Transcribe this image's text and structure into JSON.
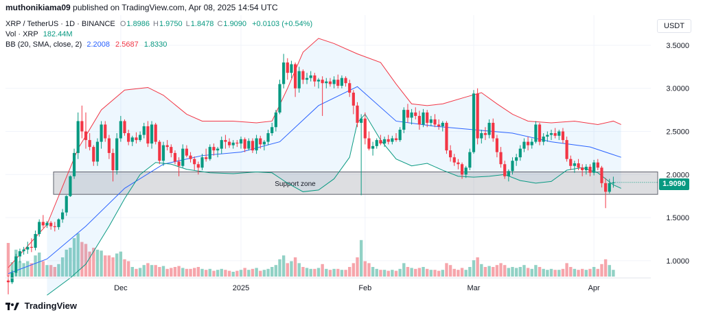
{
  "header": {
    "user": "muthonikiama09",
    "published_text": "published on TradingView.com, Apr 08, 2025 14:54 UTC"
  },
  "legend": {
    "symbol": "XRP / TetherUS · 1D · BINANCE",
    "ohlc": [
      {
        "label": "O",
        "value": "1.8986"
      },
      {
        "label": "H",
        "value": "1.9750"
      },
      {
        "label": "L",
        "value": "1.8478"
      },
      {
        "label": "C",
        "value": "1.9090"
      }
    ],
    "change": "+0.0103 (+0.54%)",
    "volume_label": "Vol · XRP",
    "volume_value": "182.44M",
    "bb_label": "BB (20, SMA, close, 2)",
    "bb_basis": "2.2008",
    "bb_upper": "2.5687",
    "bb_lower": "1.8330"
  },
  "quote_currency": "USDT",
  "last_price": "1.9090",
  "annotation": {
    "text": "Support zone",
    "from": 1.77,
    "to": 2.03
  },
  "footer": {
    "brand": "TradingView"
  },
  "colors": {
    "up": "#089981",
    "down": "#f23645",
    "vol_up": "#91d1c5",
    "vol_down": "#f6a5ab",
    "bb_basis": "#2962ff",
    "bb_upper": "#f23645",
    "bb_lower": "#089981",
    "bb_fill": "#2196f3"
  },
  "chart_data": {
    "type": "candlestick",
    "y_ticks": [
      "3.5000",
      "3.0000",
      "2.5000",
      "2.0000",
      "1.5000",
      "1.0000"
    ],
    "x_ticks": [
      {
        "label": "Dec",
        "index": 29
      },
      {
        "label": "2025",
        "index": 60
      },
      {
        "label": "Feb",
        "index": 92
      },
      {
        "label": "Mar",
        "index": 120
      },
      {
        "label": "Apr",
        "index": 151
      }
    ],
    "ylim": [
      0.8,
      3.85
    ],
    "ohlc": [
      [
        0.77,
        0.83,
        0.61,
        0.75
      ],
      [
        0.75,
        0.89,
        0.73,
        0.86
      ],
      [
        0.86,
        1.08,
        0.82,
        1.05
      ],
      [
        1.05,
        1.14,
        0.98,
        1.11
      ],
      [
        1.11,
        1.16,
        1.07,
        1.13
      ],
      [
        1.13,
        1.22,
        1.08,
        1.16
      ],
      [
        1.16,
        1.26,
        1.1,
        1.15
      ],
      [
        1.15,
        1.35,
        1.12,
        1.31
      ],
      [
        1.31,
        1.48,
        1.28,
        1.45
      ],
      [
        1.45,
        1.53,
        1.38,
        1.41
      ],
      [
        1.41,
        1.46,
        1.38,
        1.44
      ],
      [
        1.44,
        1.46,
        1.36,
        1.4
      ],
      [
        1.4,
        1.45,
        1.34,
        1.39
      ],
      [
        1.39,
        1.49,
        1.36,
        1.48
      ],
      [
        1.48,
        1.6,
        1.44,
        1.56
      ],
      [
        1.56,
        1.76,
        1.52,
        1.75
      ],
      [
        1.75,
        1.99,
        1.74,
        1.98
      ],
      [
        1.98,
        2.3,
        1.95,
        2.25
      ],
      [
        2.25,
        2.72,
        2.18,
        2.62
      ],
      [
        2.62,
        2.8,
        2.42,
        2.5
      ],
      [
        2.5,
        2.72,
        2.3,
        2.4
      ],
      [
        2.4,
        2.48,
        2.28,
        2.32
      ],
      [
        2.32,
        2.34,
        2.1,
        2.15
      ],
      [
        2.15,
        2.42,
        2.1,
        2.38
      ],
      [
        2.38,
        2.62,
        2.3,
        2.58
      ],
      [
        2.58,
        2.62,
        2.38,
        2.42
      ],
      [
        2.42,
        2.46,
        2.18,
        2.25
      ],
      [
        2.25,
        2.3,
        1.92,
        2.05
      ],
      [
        2.05,
        2.48,
        2.0,
        2.42
      ],
      [
        2.42,
        2.68,
        2.38,
        2.62
      ],
      [
        2.62,
        2.64,
        2.45,
        2.48
      ],
      [
        2.48,
        2.52,
        2.34,
        2.38
      ],
      [
        2.38,
        2.45,
        2.33,
        2.43
      ],
      [
        2.43,
        2.49,
        2.36,
        2.4
      ],
      [
        2.4,
        2.5,
        2.38,
        2.46
      ],
      [
        2.46,
        2.6,
        2.42,
        2.56
      ],
      [
        2.56,
        2.62,
        2.32,
        2.36
      ],
      [
        2.36,
        2.62,
        2.3,
        2.58
      ],
      [
        2.58,
        2.6,
        2.35,
        2.38
      ],
      [
        2.38,
        2.4,
        2.12,
        2.16
      ],
      [
        2.16,
        2.38,
        2.1,
        2.34
      ],
      [
        2.34,
        2.4,
        2.28,
        2.32
      ],
      [
        2.32,
        2.35,
        2.2,
        2.25
      ],
      [
        2.25,
        2.28,
        2.12,
        2.15
      ],
      [
        2.15,
        2.2,
        1.98,
        2.1
      ],
      [
        2.1,
        2.35,
        2.08,
        2.3
      ],
      [
        2.3,
        2.34,
        2.2,
        2.22
      ],
      [
        2.22,
        2.26,
        2.14,
        2.18
      ],
      [
        2.18,
        2.21,
        2.05,
        2.12
      ],
      [
        2.12,
        2.15,
        2.0,
        2.08
      ],
      [
        2.08,
        2.24,
        2.05,
        2.2
      ],
      [
        2.2,
        2.3,
        2.15,
        2.18
      ],
      [
        2.18,
        2.35,
        2.16,
        2.32
      ],
      [
        2.32,
        2.36,
        2.22,
        2.28
      ],
      [
        2.28,
        2.32,
        2.2,
        2.3
      ],
      [
        2.3,
        2.44,
        2.24,
        2.4
      ],
      [
        2.4,
        2.46,
        2.3,
        2.38
      ],
      [
        2.38,
        2.42,
        2.31,
        2.34
      ],
      [
        2.34,
        2.4,
        2.3,
        2.37
      ],
      [
        2.37,
        2.4,
        2.32,
        2.36
      ],
      [
        2.36,
        2.44,
        2.3,
        2.41
      ],
      [
        2.41,
        2.43,
        2.26,
        2.3
      ],
      [
        2.3,
        2.42,
        2.28,
        2.39
      ],
      [
        2.39,
        2.42,
        2.25,
        2.28
      ],
      [
        2.28,
        2.46,
        2.24,
        2.42
      ],
      [
        2.42,
        2.45,
        2.3,
        2.35
      ],
      [
        2.35,
        2.4,
        2.28,
        2.38
      ],
      [
        2.38,
        2.52,
        2.34,
        2.48
      ],
      [
        2.48,
        2.6,
        2.45,
        2.55
      ],
      [
        2.55,
        2.75,
        2.5,
        2.72
      ],
      [
        2.72,
        3.1,
        2.7,
        3.05
      ],
      [
        3.05,
        3.4,
        3.0,
        3.3
      ],
      [
        3.3,
        3.35,
        3.1,
        3.18
      ],
      [
        3.18,
        3.32,
        3.12,
        3.28
      ],
      [
        3.28,
        3.3,
        2.9,
        3.0
      ],
      [
        3.0,
        3.25,
        2.95,
        3.2
      ],
      [
        3.2,
        3.22,
        3.05,
        3.1
      ],
      [
        3.1,
        3.18,
        3.05,
        3.12
      ],
      [
        3.12,
        3.2,
        3.08,
        3.15
      ],
      [
        3.15,
        3.18,
        3.02,
        3.08
      ],
      [
        3.08,
        3.12,
        3.0,
        3.1
      ],
      [
        3.1,
        3.14,
        2.68,
        3.06
      ],
      [
        3.06,
        3.12,
        3.0,
        3.08
      ],
      [
        3.08,
        3.12,
        3.02,
        3.05
      ],
      [
        3.05,
        3.14,
        3.0,
        3.1
      ],
      [
        3.1,
        3.16,
        3.0,
        3.03
      ],
      [
        3.03,
        3.15,
        3.0,
        3.12
      ],
      [
        3.12,
        3.14,
        3.02,
        3.06
      ],
      [
        3.06,
        3.1,
        2.9,
        2.95
      ],
      [
        2.95,
        2.98,
        2.7,
        2.8
      ],
      [
        2.8,
        2.84,
        2.55,
        2.6
      ],
      [
        2.6,
        2.7,
        1.76,
        2.65
      ],
      [
        2.65,
        2.72,
        2.35,
        2.42
      ],
      [
        2.42,
        2.5,
        2.28,
        2.3
      ],
      [
        2.3,
        2.38,
        2.22,
        2.33
      ],
      [
        2.33,
        2.42,
        2.3,
        2.4
      ],
      [
        2.4,
        2.46,
        2.34,
        2.36
      ],
      [
        2.36,
        2.44,
        2.32,
        2.41
      ],
      [
        2.41,
        2.46,
        2.35,
        2.38
      ],
      [
        2.38,
        2.45,
        2.35,
        2.42
      ],
      [
        2.42,
        2.48,
        2.38,
        2.4
      ],
      [
        2.4,
        2.55,
        2.38,
        2.52
      ],
      [
        2.52,
        2.78,
        2.48,
        2.75
      ],
      [
        2.75,
        2.82,
        2.6,
        2.66
      ],
      [
        2.66,
        2.76,
        2.58,
        2.72
      ],
      [
        2.72,
        2.78,
        2.64,
        2.68
      ],
      [
        2.68,
        2.74,
        2.52,
        2.58
      ],
      [
        2.58,
        2.76,
        2.55,
        2.72
      ],
      [
        2.72,
        2.75,
        2.55,
        2.6
      ],
      [
        2.6,
        2.68,
        2.56,
        2.64
      ],
      [
        2.64,
        2.7,
        2.55,
        2.58
      ],
      [
        2.58,
        2.64,
        2.52,
        2.56
      ],
      [
        2.56,
        2.62,
        2.5,
        2.6
      ],
      [
        2.6,
        2.62,
        2.24,
        2.28
      ],
      [
        2.28,
        2.34,
        2.15,
        2.2
      ],
      [
        2.2,
        2.24,
        2.1,
        2.14
      ],
      [
        2.14,
        2.18,
        2.06,
        2.12
      ],
      [
        2.12,
        2.14,
        1.95,
        2.0
      ],
      [
        2.0,
        2.1,
        1.96,
        2.08
      ],
      [
        2.08,
        2.3,
        2.05,
        2.26
      ],
      [
        2.26,
        2.98,
        2.24,
        2.94
      ],
      [
        2.94,
        3.0,
        2.35,
        2.42
      ],
      [
        2.42,
        2.52,
        2.36,
        2.48
      ],
      [
        2.48,
        2.55,
        2.4,
        2.46
      ],
      [
        2.46,
        2.64,
        2.42,
        2.6
      ],
      [
        2.6,
        2.65,
        2.38,
        2.42
      ],
      [
        2.42,
        2.46,
        2.2,
        2.26
      ],
      [
        2.26,
        2.32,
        2.08,
        2.12
      ],
      [
        2.12,
        2.16,
        1.95,
        1.98
      ],
      [
        1.98,
        2.06,
        1.92,
        2.04
      ],
      [
        2.04,
        2.2,
        2.0,
        2.16
      ],
      [
        2.16,
        2.24,
        2.1,
        2.2
      ],
      [
        2.2,
        2.34,
        2.16,
        2.3
      ],
      [
        2.3,
        2.42,
        2.26,
        2.38
      ],
      [
        2.38,
        2.44,
        2.28,
        2.34
      ],
      [
        2.34,
        2.42,
        2.3,
        2.38
      ],
      [
        2.38,
        2.62,
        2.36,
        2.58
      ],
      [
        2.58,
        2.6,
        2.34,
        2.38
      ],
      [
        2.38,
        2.48,
        2.34,
        2.44
      ],
      [
        2.44,
        2.5,
        2.38,
        2.46
      ],
      [
        2.46,
        2.52,
        2.4,
        2.48
      ],
      [
        2.48,
        2.54,
        2.42,
        2.45
      ],
      [
        2.45,
        2.52,
        2.4,
        2.5
      ],
      [
        2.5,
        2.54,
        2.36,
        2.4
      ],
      [
        2.4,
        2.44,
        2.15,
        2.18
      ],
      [
        2.18,
        2.22,
        2.05,
        2.1
      ],
      [
        2.1,
        2.16,
        2.02,
        2.13
      ],
      [
        2.13,
        2.18,
        2.05,
        2.08
      ],
      [
        2.08,
        2.12,
        1.98,
        2.05
      ],
      [
        2.05,
        2.12,
        2.0,
        2.09
      ],
      [
        2.09,
        2.12,
        1.98,
        2.02
      ],
      [
        2.02,
        2.17,
        1.99,
        2.14
      ],
      [
        2.14,
        2.18,
        2.05,
        2.08
      ],
      [
        2.08,
        2.1,
        1.85,
        1.9
      ],
      [
        1.9,
        1.96,
        1.61,
        1.8
      ],
      [
        1.8,
        1.95,
        1.78,
        1.9
      ],
      [
        1.8986,
        1.975,
        1.8478,
        1.909
      ]
    ],
    "volume": [
      0.35,
      0.15,
      0.28,
      0.16,
      0.14,
      0.16,
      0.14,
      0.22,
      0.25,
      0.16,
      0.12,
      0.12,
      0.1,
      0.13,
      0.2,
      0.28,
      0.3,
      0.4,
      0.45,
      0.36,
      0.34,
      0.26,
      0.3,
      0.28,
      0.27,
      0.22,
      0.22,
      0.2,
      0.24,
      0.26,
      0.18,
      0.16,
      0.1,
      0.08,
      0.09,
      0.12,
      0.14,
      0.12,
      0.12,
      0.1,
      0.11,
      0.08,
      0.09,
      0.1,
      0.11,
      0.09,
      0.08,
      0.08,
      0.09,
      0.1,
      0.08,
      0.07,
      0.08,
      0.06,
      0.07,
      0.08,
      0.07,
      0.06,
      0.05,
      0.06,
      0.07,
      0.09,
      0.07,
      0.08,
      0.09,
      0.06,
      0.07,
      0.08,
      0.1,
      0.12,
      0.18,
      0.22,
      0.14,
      0.16,
      0.2,
      0.14,
      0.1,
      0.09,
      0.08,
      0.08,
      0.09,
      0.13,
      0.08,
      0.07,
      0.08,
      0.08,
      0.07,
      0.07,
      0.1,
      0.14,
      0.2,
      0.38,
      0.16,
      0.14,
      0.1,
      0.08,
      0.07,
      0.07,
      0.06,
      0.07,
      0.06,
      0.08,
      0.14,
      0.1,
      0.09,
      0.08,
      0.09,
      0.1,
      0.08,
      0.07,
      0.07,
      0.06,
      0.07,
      0.14,
      0.12,
      0.08,
      0.07,
      0.09,
      0.07,
      0.1,
      0.17,
      0.2,
      0.13,
      0.1,
      0.11,
      0.1,
      0.12,
      0.14,
      0.12,
      0.09,
      0.1,
      0.09,
      0.1,
      0.12,
      0.09,
      0.08,
      0.12,
      0.1,
      0.08,
      0.07,
      0.08,
      0.07,
      0.07,
      0.08,
      0.14,
      0.1,
      0.08,
      0.07,
      0.08,
      0.07,
      0.08,
      0.1,
      0.08,
      0.13,
      0.18,
      0.12,
      0.07
    ],
    "bb_basis": [
      [
        0,
        0.85
      ],
      [
        10,
        1.02
      ],
      [
        20,
        1.4
      ],
      [
        30,
        1.84
      ],
      [
        40,
        2.12
      ],
      [
        50,
        2.22
      ],
      [
        60,
        2.26
      ],
      [
        70,
        2.38
      ],
      [
        80,
        2.8
      ],
      [
        90,
        3.02
      ],
      [
        100,
        2.62
      ],
      [
        110,
        2.56
      ],
      [
        120,
        2.52
      ],
      [
        130,
        2.48
      ],
      [
        140,
        2.38
      ],
      [
        150,
        2.32
      ],
      [
        158,
        2.2
      ]
    ],
    "bb_upper": [
      [
        0,
        0.92
      ],
      [
        10,
        1.42
      ],
      [
        18,
        2.3
      ],
      [
        24,
        2.75
      ],
      [
        30,
        2.98
      ],
      [
        36,
        3.01
      ],
      [
        40,
        2.92
      ],
      [
        46,
        2.7
      ],
      [
        50,
        2.62
      ],
      [
        58,
        2.62
      ],
      [
        64,
        2.6
      ],
      [
        68,
        2.62
      ],
      [
        72,
        3.0
      ],
      [
        76,
        3.42
      ],
      [
        80,
        3.58
      ],
      [
        84,
        3.52
      ],
      [
        90,
        3.4
      ],
      [
        96,
        3.3
      ],
      [
        100,
        3.05
      ],
      [
        104,
        2.82
      ],
      [
        108,
        2.8
      ],
      [
        112,
        2.82
      ],
      [
        118,
        2.9
      ],
      [
        122,
        2.95
      ],
      [
        126,
        2.82
      ],
      [
        130,
        2.7
      ],
      [
        134,
        2.62
      ],
      [
        140,
        2.6
      ],
      [
        146,
        2.62
      ],
      [
        152,
        2.58
      ],
      [
        156,
        2.62
      ],
      [
        158,
        2.58
      ]
    ],
    "bb_lower": [
      [
        10,
        0.6
      ],
      [
        16,
        0.8
      ],
      [
        20,
        0.96
      ],
      [
        26,
        1.4
      ],
      [
        30,
        1.72
      ],
      [
        34,
        2.0
      ],
      [
        38,
        2.14
      ],
      [
        42,
        2.12
      ],
      [
        46,
        2.06
      ],
      [
        52,
        2.02
      ],
      [
        58,
        2.01
      ],
      [
        64,
        2.03
      ],
      [
        68,
        2.02
      ],
      [
        72,
        1.9
      ],
      [
        76,
        1.8
      ],
      [
        80,
        1.82
      ],
      [
        84,
        1.95
      ],
      [
        88,
        2.2
      ],
      [
        90,
        2.6
      ],
      [
        92,
        2.7
      ],
      [
        96,
        2.4
      ],
      [
        100,
        2.18
      ],
      [
        104,
        2.1
      ],
      [
        108,
        2.13
      ],
      [
        112,
        2.05
      ],
      [
        116,
        1.98
      ],
      [
        120,
        1.97
      ],
      [
        124,
        1.98
      ],
      [
        128,
        2.0
      ],
      [
        132,
        1.93
      ],
      [
        136,
        1.9
      ],
      [
        140,
        1.92
      ],
      [
        144,
        2.05
      ],
      [
        148,
        2.08
      ],
      [
        152,
        2.02
      ],
      [
        156,
        1.88
      ],
      [
        158,
        1.84
      ]
    ]
  }
}
